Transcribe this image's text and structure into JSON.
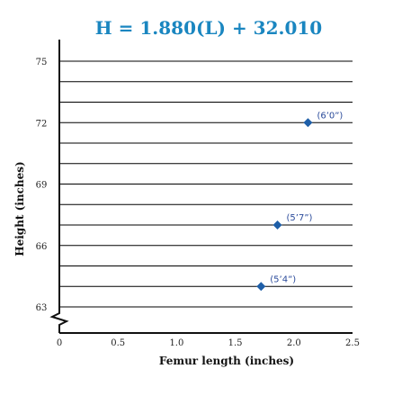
{
  "chart_data": {
    "type": "scatter",
    "title": "H = 1.880(L) + 32.010",
    "xlabel": "Femur length (inches)",
    "ylabel": "Height (inches)",
    "xlim": [
      0,
      2.5
    ],
    "ylim": [
      63,
      76
    ],
    "x_tick_labels": [
      "0",
      "0.5",
      "1.0",
      "1.5",
      "2.0",
      "2.5"
    ],
    "y_tick_labels": [
      "63",
      "66",
      "69",
      "72",
      "75"
    ],
    "grid": "horizontal",
    "regression_line": {
      "slope": 1.88,
      "intercept": 32.01,
      "color": "#c5e2f3"
    },
    "points": [
      {
        "x": 1.72,
        "y": 64,
        "label": "(5’4”)"
      },
      {
        "x": 1.86,
        "y": 67,
        "label": "(5’7”)"
      },
      {
        "x": 2.12,
        "y": 72,
        "label": "(6’0”)"
      }
    ],
    "colors": {
      "title": "#1a86c0",
      "marker": "#1f5fa8",
      "point_label": "#2a4a9a",
      "grid": "#000000"
    }
  }
}
